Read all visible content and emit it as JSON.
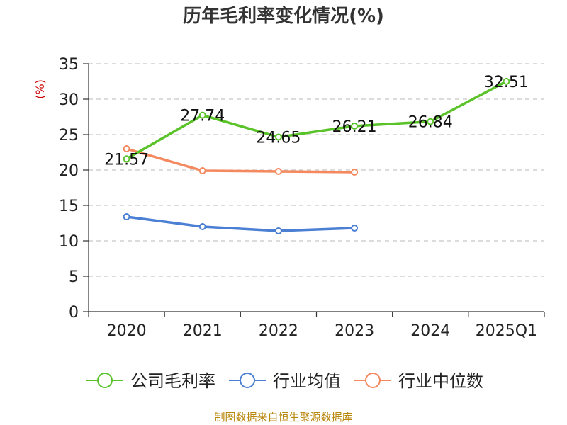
{
  "title": "历年毛利率变化情况(%)",
  "source": "制图数据来自恒生聚源数据库",
  "colors": {
    "company": "#5ac32a",
    "industry_avg": "#4a7fd4",
    "industry_median": "#f4895f",
    "grid": "#c8c8c8",
    "axis": "#333333",
    "unit": "#cc0000"
  },
  "chart_data": {
    "type": "line",
    "title": "历年毛利率变化情况(%)",
    "ylabel": "(%)",
    "xlabel": "",
    "categories": [
      "2020",
      "2021",
      "2022",
      "2023",
      "2024",
      "2025Q1"
    ],
    "ylim": [
      0,
      35
    ],
    "yticks": [
      0,
      5,
      10,
      15,
      20,
      25,
      30,
      35
    ],
    "grid": true,
    "legend": "bottom",
    "series": [
      {
        "name": "公司毛利率",
        "values": [
          21.57,
          27.74,
          24.65,
          26.21,
          26.84,
          32.51
        ],
        "color": "#5ac32a",
        "labels": [
          "21.57",
          "27.74",
          "24.65",
          "26.21",
          "26.84",
          "32.51"
        ]
      },
      {
        "name": "行业均值",
        "values": [
          13.4,
          12.0,
          11.4,
          11.8,
          null,
          null
        ],
        "color": "#4a7fd4"
      },
      {
        "name": "行业中位数",
        "values": [
          23.0,
          19.9,
          19.8,
          19.7,
          null,
          null
        ],
        "color": "#f4895f"
      }
    ]
  }
}
